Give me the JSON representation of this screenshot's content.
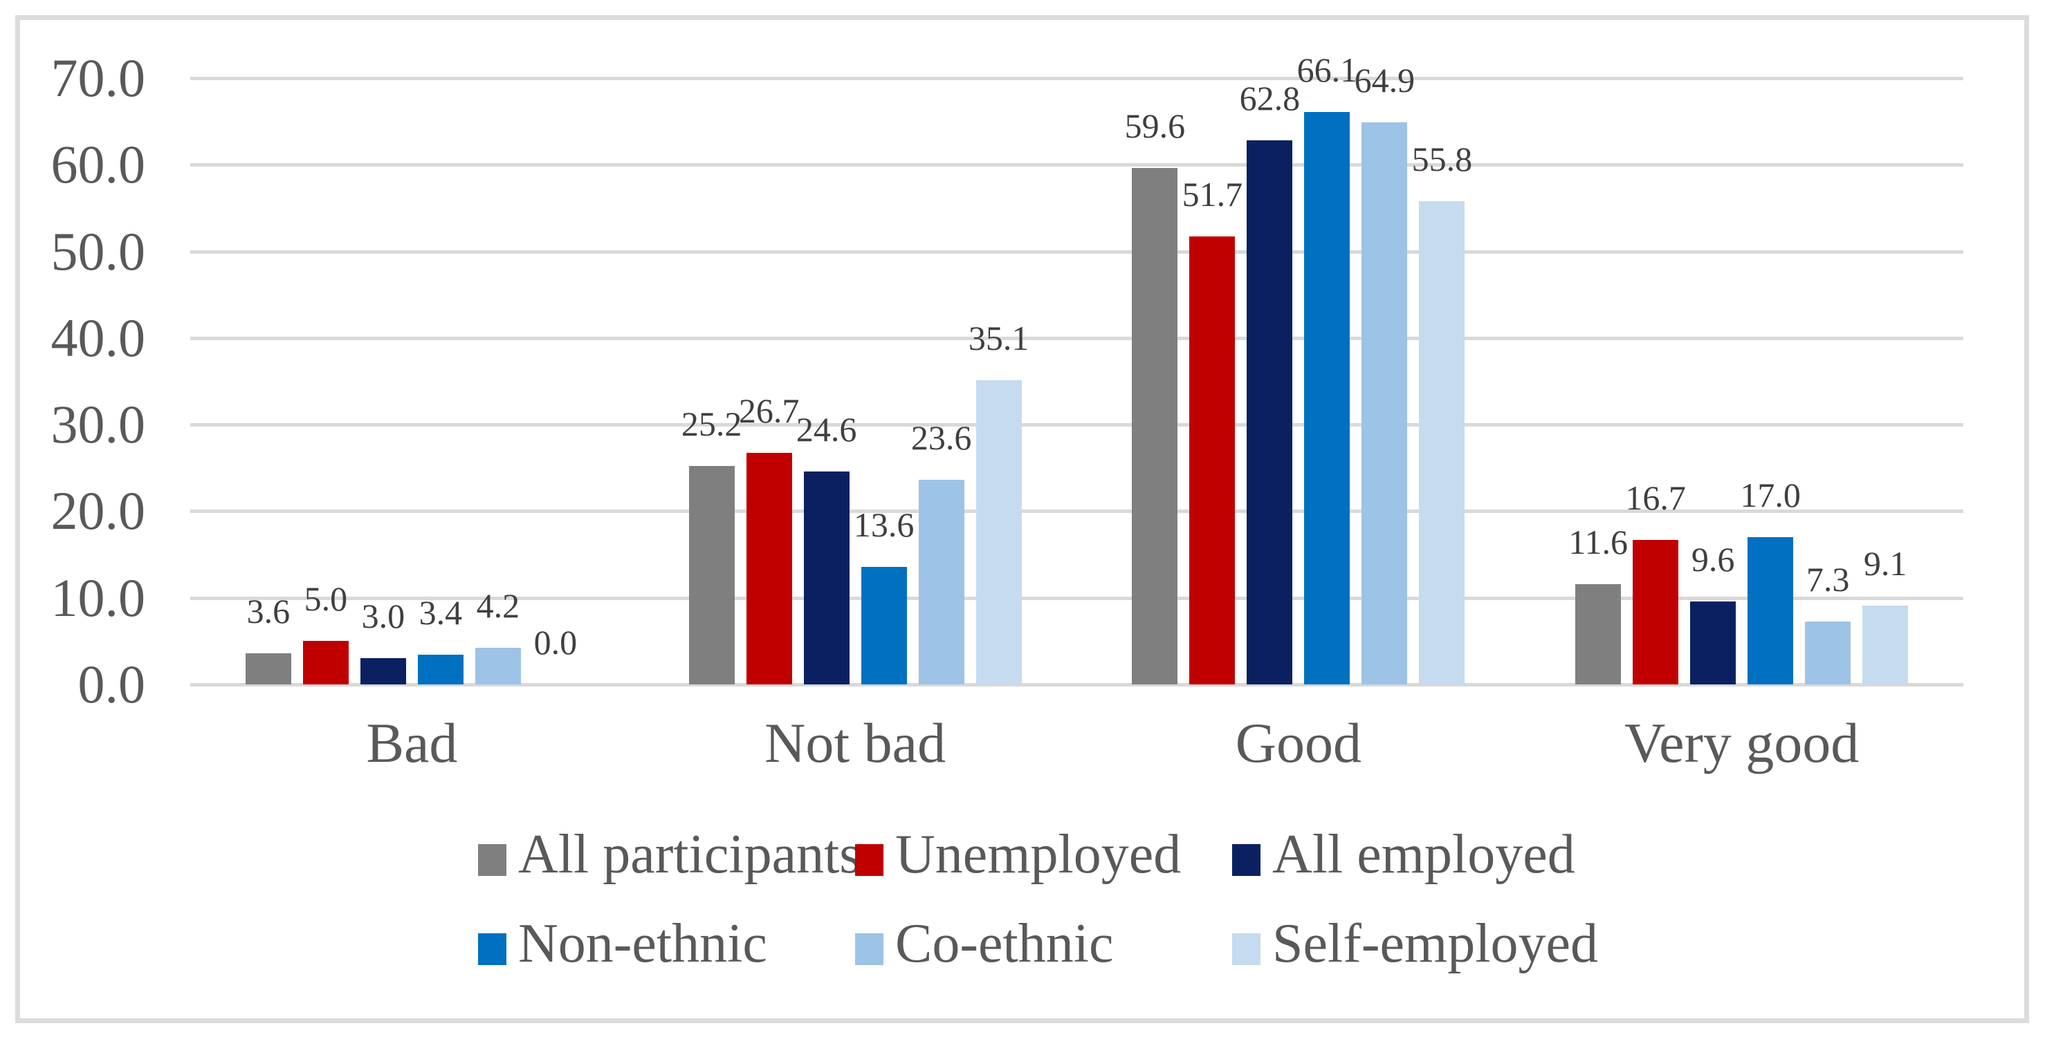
{
  "chart_data": {
    "type": "bar",
    "title": "",
    "categories": [
      "Bad",
      "Not bad",
      "Good",
      "Very good"
    ],
    "series": [
      {
        "name": "All participants",
        "color": "#7F7F7F",
        "values": [
          3.6,
          25.2,
          59.6,
          11.6
        ]
      },
      {
        "name": "Unemployed",
        "color": "#C00000",
        "values": [
          5.0,
          26.7,
          51.7,
          16.7
        ]
      },
      {
        "name": "All employed",
        "color": "#0A2061",
        "values": [
          3.0,
          24.6,
          62.8,
          9.6
        ]
      },
      {
        "name": "Non-ethnic",
        "color": "#0070C0",
        "values": [
          3.4,
          13.6,
          66.1,
          17.0
        ]
      },
      {
        "name": "Co-ethnic",
        "color": "#9DC3E6",
        "values": [
          4.2,
          23.6,
          64.9,
          7.3
        ]
      },
      {
        "name": "Self-employed",
        "color": "#C5DBEF",
        "values": [
          0.0,
          35.1,
          55.8,
          9.1
        ]
      }
    ],
    "y_ticks": [
      "70.0",
      "60.0",
      "50.0",
      "40.0",
      "30.0",
      "20.0",
      "10.0",
      "0.0"
    ],
    "ylim": [
      0,
      70
    ],
    "y_step": 10,
    "grid": true,
    "data_labels": true,
    "data_label_decimals": 1,
    "legend_position": "bottom",
    "legend_rows": 2
  },
  "colors": {
    "gridline": "#D9D9D9",
    "frame_border": "#DCDCDC",
    "axis_text": "#595959",
    "data_label_text": "#3F3F3F",
    "background": "#FFFFFF"
  }
}
